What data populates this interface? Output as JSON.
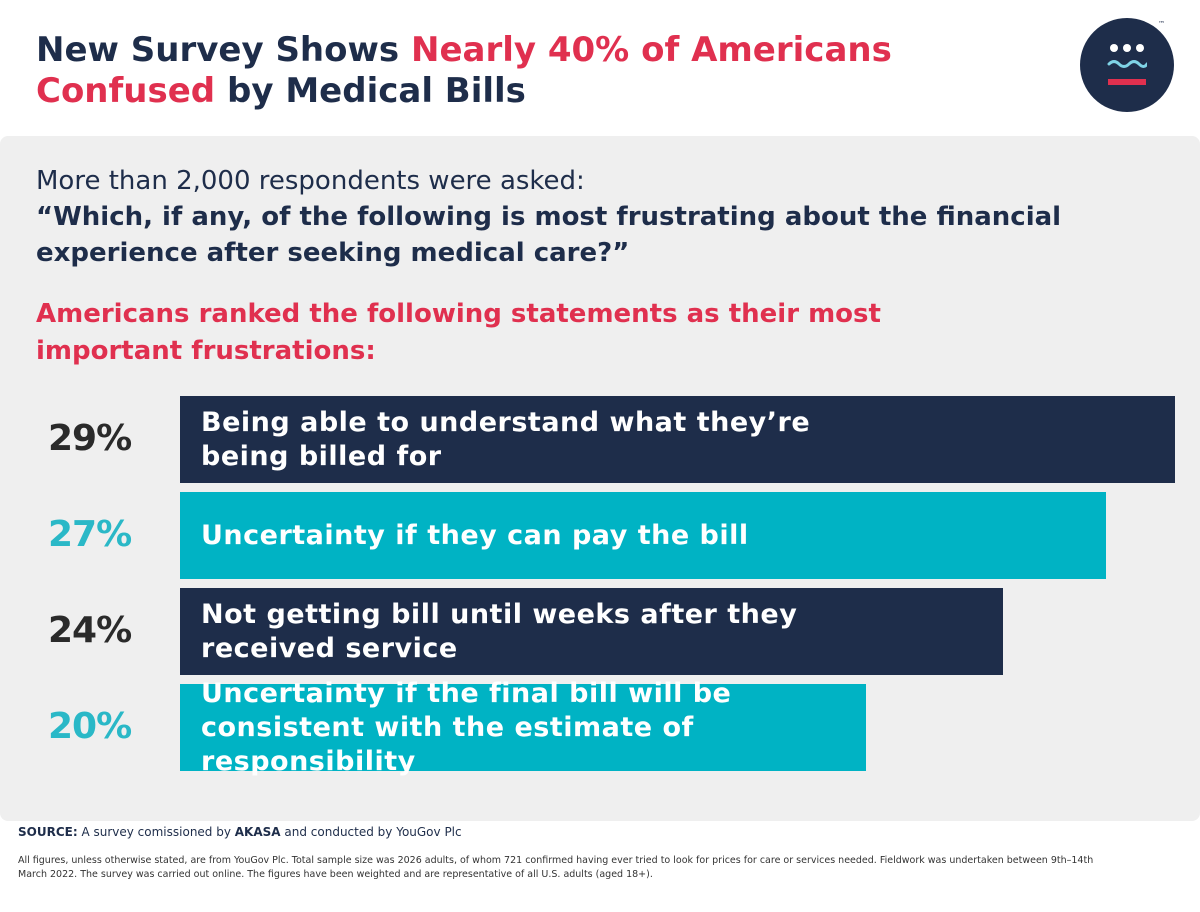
{
  "header": {
    "title_part1": "New Survey Shows ",
    "title_highlight": "Nearly 40% of Americans Confused",
    "title_part2": " by Medical Bills"
  },
  "logo": {
    "tm": "™"
  },
  "intro": {
    "line1": "More than 2,000 respondents were asked:",
    "question": "“Which, if any, of the following is most frustrating about the financial experience after seeking medical care?”"
  },
  "subhead": "Americans ranked the following statements as their most important frustrations:",
  "colors": {
    "navy": "#1e2d4a",
    "teal": "#00b3c4",
    "red": "#e0304f",
    "pct_dark": "#2a2a2a",
    "pct_teal": "#2ab8c7"
  },
  "chart_data": {
    "type": "bar",
    "orientation": "horizontal",
    "unit": "%",
    "xlim": [
      0,
      29
    ],
    "categories": [
      "Being able to understand what they’re being billed for",
      "Uncertainty if they can pay the bill",
      "Not getting bill until weeks after they received service",
      "Uncertainty if the final bill will be consistent with the estimate of responsibility"
    ],
    "values": [
      29,
      27,
      24,
      20
    ],
    "value_labels": [
      "29%",
      "27%",
      "24%",
      "20%"
    ],
    "bar_colors": [
      "#1e2d4a",
      "#00b3c4",
      "#1e2d4a",
      "#00b3c4"
    ],
    "label_colors": [
      "#2a2a2a",
      "#2ab8c7",
      "#2a2a2a",
      "#2ab8c7"
    ]
  },
  "source": {
    "label": "SOURCE:",
    "text1": " A survey comissioned by ",
    "brand": "AKASA",
    "text2": " and conducted by YouGov Plc"
  },
  "footnote": "All figures, unless otherwise stated, are from YouGov Plc. Total sample size was 2026 adults, of whom 721 confirmed having ever tried to look for prices for care or services needed. Fieldwork was undertaken between 9th–14th March 2022. The survey was carried out online. The figures have been weighted and are representative of all U.S. adults (aged 18+)."
}
